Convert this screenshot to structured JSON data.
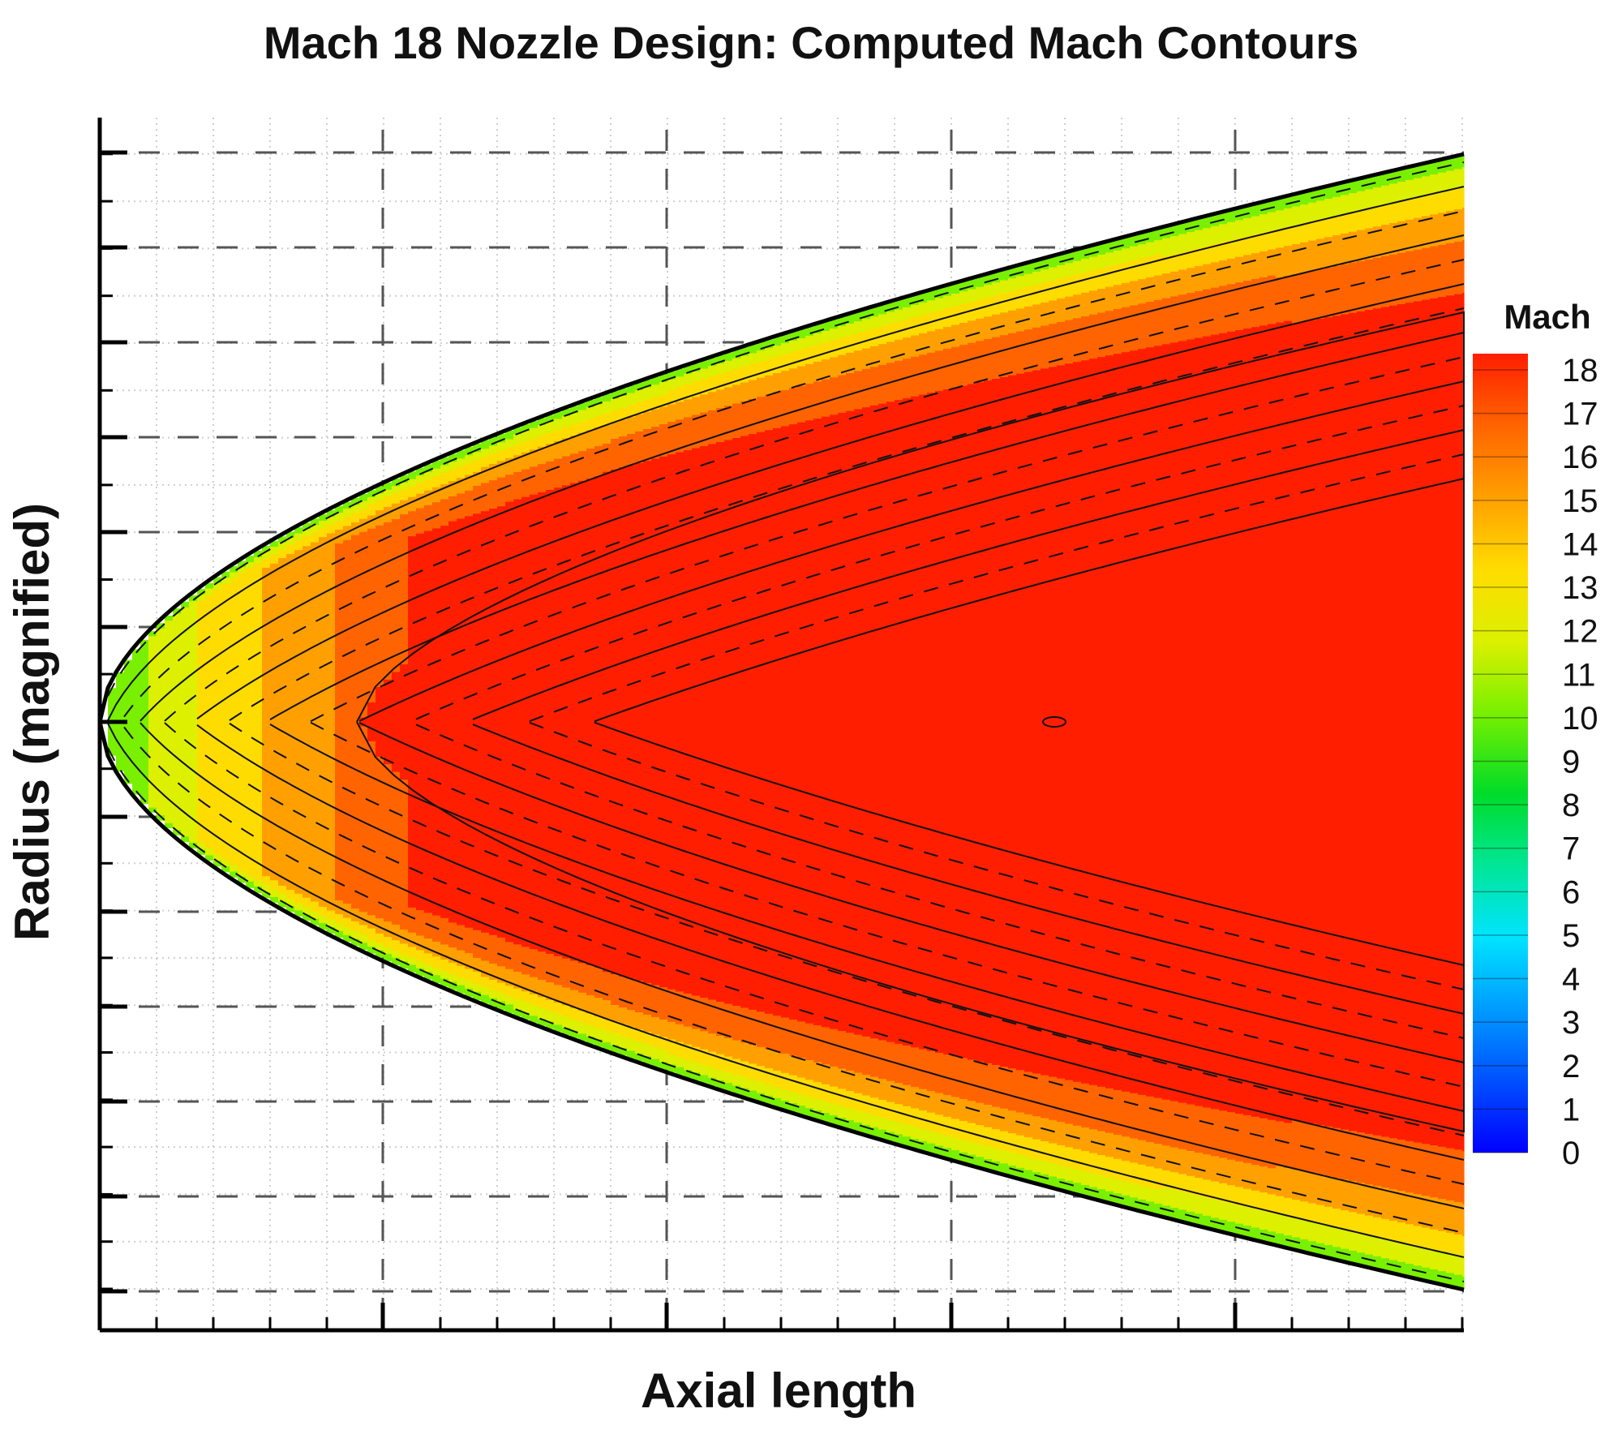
{
  "chart_data": {
    "type": "contour",
    "title": "Mach 18 Nozzle Design: Computed Mach Contours",
    "xlabel": "Axial length",
    "ylabel": "Radius (magnified)",
    "colorbar": {
      "title": "Mach",
      "min": 0,
      "max": 18,
      "ticks": [
        18,
        17,
        16,
        15,
        14,
        13,
        12,
        11,
        10,
        9,
        8,
        7,
        6,
        5,
        4,
        3,
        2,
        1,
        0
      ]
    },
    "series": [
      {
        "field": "Mach number",
        "inlet_centerline": 9,
        "core_max": 18
      }
    ],
    "grid": true,
    "legend": "right"
  },
  "colors": {
    "palette": [
      "#0000ff",
      "#0050ff",
      "#009cff",
      "#00e4ff",
      "#00e696",
      "#00dc28",
      "#78f000",
      "#dcf000",
      "#ffdc00",
      "#ffa000",
      "#ff6400",
      "#ff1e00"
    ]
  }
}
